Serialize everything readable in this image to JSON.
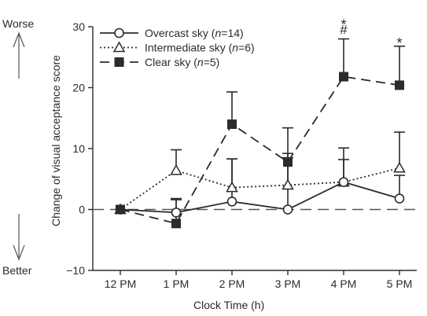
{
  "chart_data": {
    "type": "line",
    "xlabel": "Clock Time (h)",
    "ylabel": "Change of visual acceptance score",
    "categories": [
      "12 PM",
      "1 PM",
      "2 PM",
      "3 PM",
      "4 PM",
      "5 PM"
    ],
    "ylim": [
      -10,
      30
    ],
    "yticks": [
      -10,
      0,
      10,
      20,
      30
    ],
    "reference_line_y": 0,
    "grid": false,
    "legend_position": "top-left",
    "side_labels": {
      "top": "Worse",
      "bottom": "Better"
    },
    "series": [
      {
        "name_prefix": "Overcast sky (",
        "name_italic": "n",
        "name_suffix": "=14)",
        "marker": "circle-open",
        "line": "solid",
        "values": [
          0,
          -0.5,
          1.3,
          0,
          4.5,
          1.8
        ],
        "error_upper": [
          0,
          1.8,
          8.3,
          8.5,
          10.1,
          5.6
        ]
      },
      {
        "name_prefix": "Intermediate sky (",
        "name_italic": "n",
        "name_suffix": "=6)",
        "marker": "triangle-open",
        "line": "dotted",
        "values": [
          0,
          6.4,
          3.6,
          4,
          4.5,
          6.8
        ],
        "error_upper": [
          0,
          9.8,
          8.3,
          9.2,
          8.2,
          12.7
        ]
      },
      {
        "name_prefix": "Clear sky (",
        "name_italic": "n",
        "name_suffix": "=5)",
        "marker": "square-filled",
        "line": "dashed",
        "values": [
          0,
          -2.3,
          14,
          7.8,
          21.8,
          20.4
        ],
        "error_upper": [
          0,
          1.6,
          19.3,
          13.4,
          28,
          26.8
        ]
      }
    ],
    "annotations": [
      {
        "category": "4 PM",
        "lines": [
          "*",
          "#"
        ]
      },
      {
        "category": "5 PM",
        "lines": [
          "*"
        ]
      }
    ]
  }
}
